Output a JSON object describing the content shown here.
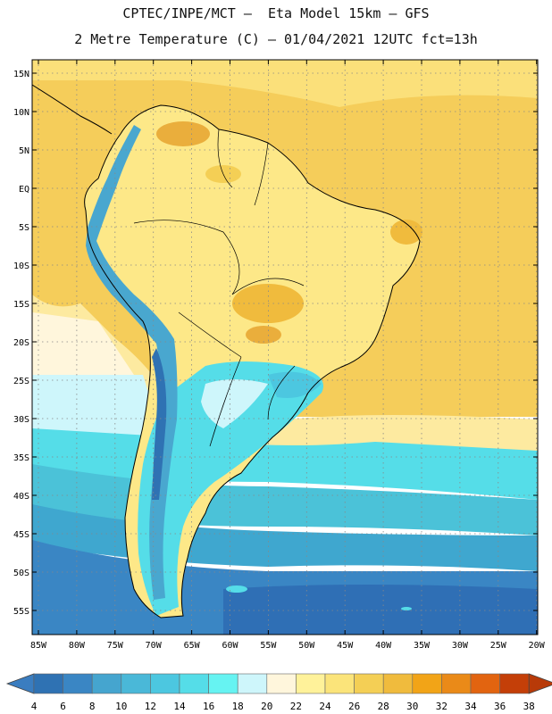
{
  "title_line1": "CPTEC/INPE/MCT –  Eta Model 15km – GFS",
  "title_line2": "2 Metre Temperature (C) – 01/04/2021 12UTC fct=13h",
  "lat_labels": [
    "15N",
    "10N",
    "5N",
    "EQ",
    "5S",
    "10S",
    "15S",
    "20S",
    "25S",
    "30S",
    "35S",
    "40S",
    "45S",
    "50S",
    "55S"
  ],
  "lon_labels": [
    "85W",
    "80W",
    "75W",
    "70W",
    "65W",
    "60W",
    "55W",
    "50W",
    "45W",
    "40W",
    "35W",
    "30W",
    "25W",
    "20W"
  ],
  "colorbar": {
    "labels": [
      "4",
      "6",
      "8",
      "10",
      "12",
      "14",
      "16",
      "18",
      "20",
      "22",
      "24",
      "26",
      "28",
      "30",
      "32",
      "34",
      "36",
      "38"
    ],
    "colors": [
      "#3a7dc0",
      "#2f72b3",
      "#3a86c4",
      "#45a5cf",
      "#4ab8d8",
      "#4cc7e0",
      "#55dde8",
      "#66f3f2",
      "#cef6fb",
      "#fff6dc",
      "#fff29a",
      "#fbe47a",
      "#f4cf55",
      "#f0bb3d",
      "#f2a417",
      "#ea8a18",
      "#e26410",
      "#c43f08",
      "#b83a08"
    ]
  },
  "regions": {
    "north_ocean": "#f5cd5a",
    "tropical_land": "#fde888",
    "hot_spots": "#eaae3c",
    "southern_ocean_warm": "#4bc2d8",
    "southern_ocean_cold": "#2f6fb5",
    "andes": "#49a7cf"
  }
}
